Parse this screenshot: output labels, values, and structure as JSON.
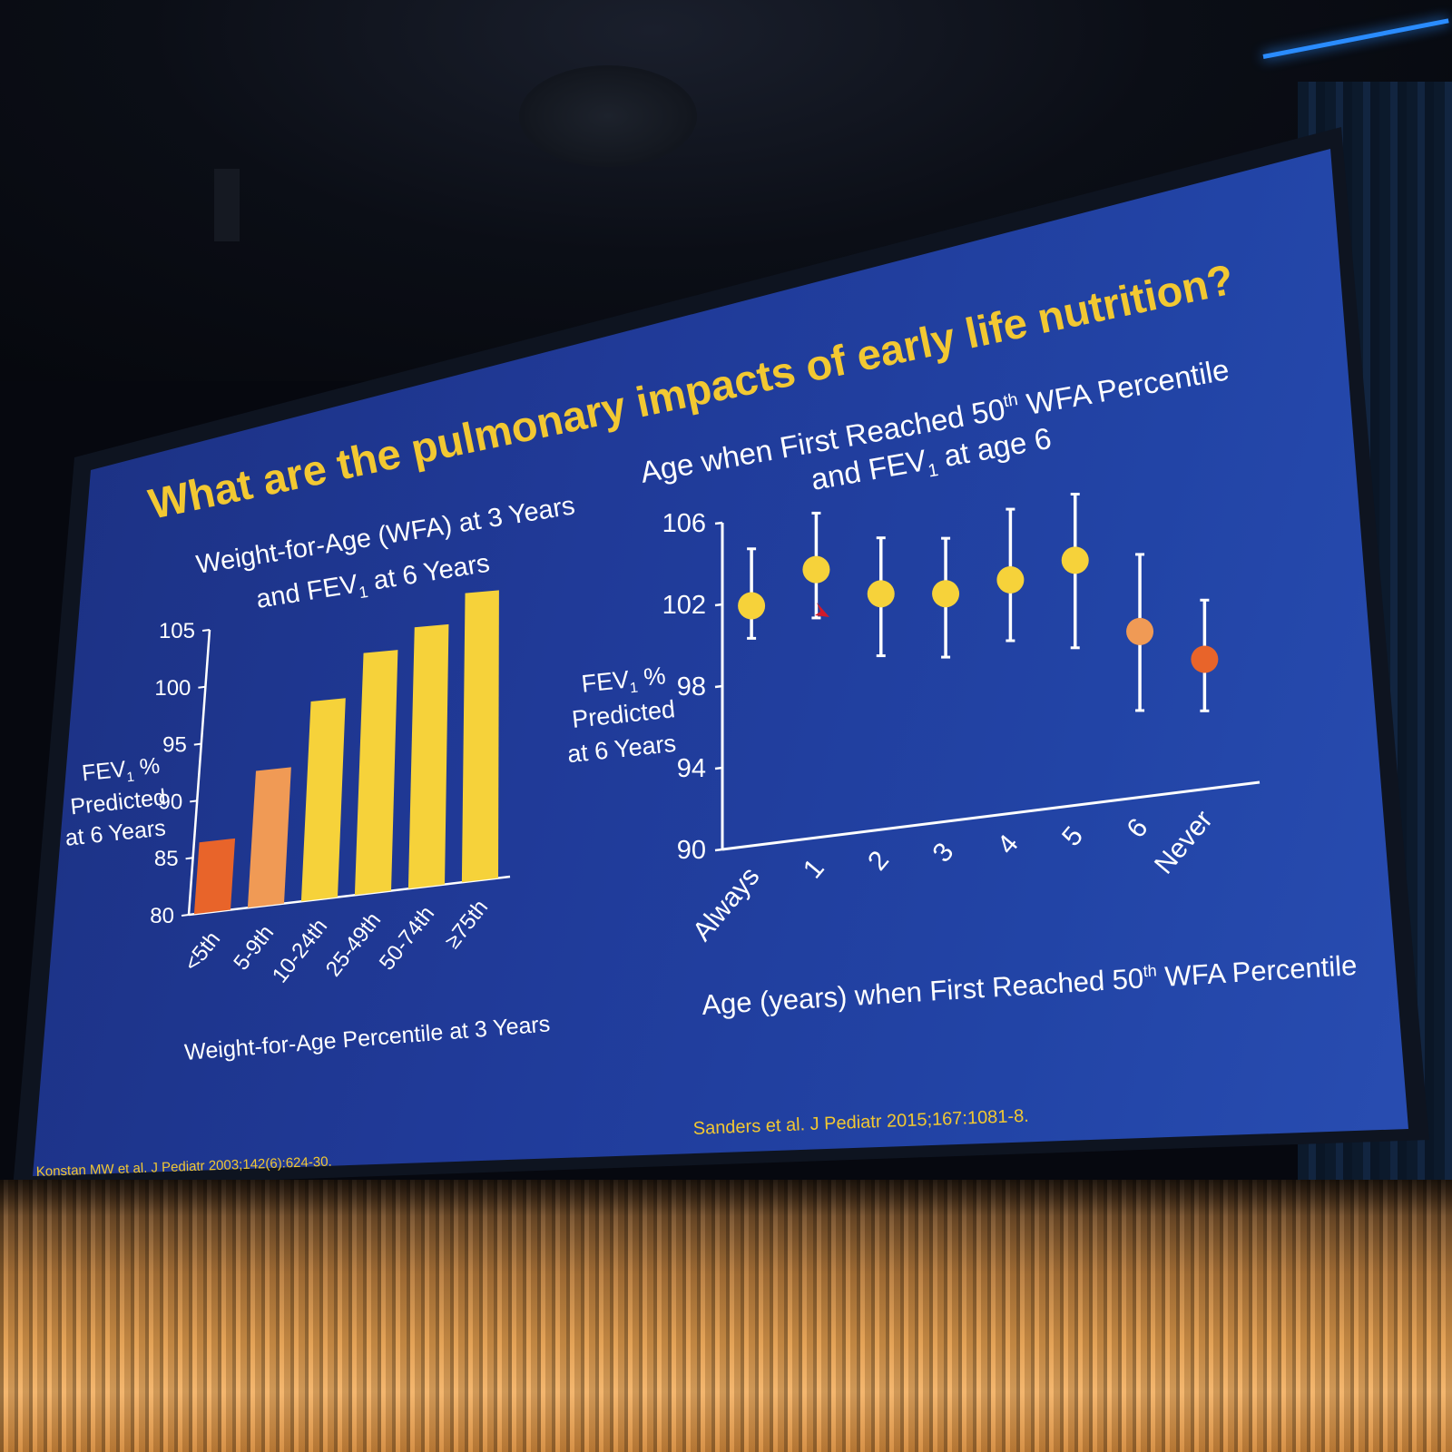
{
  "slide": {
    "title": "What are the pulmonary impacts of early life nutrition?",
    "colors": {
      "background": "#2142a3",
      "title": "#f2c832",
      "text": "#ffffff",
      "yellow": "#f6d23a",
      "orange_light": "#f09a55",
      "orange_dark": "#e8642a"
    }
  },
  "chart_data": [
    {
      "type": "bar",
      "title_line1": "Weight-for-Age (WFA) at 3 Years",
      "title_line2_pre": "and FEV",
      "title_line2_sub": "1",
      "title_line2_post": " at 6 Years",
      "ylabel_line1_pre": "FEV",
      "ylabel_line1_sub": "1",
      "ylabel_line1_post": " %",
      "ylabel_line2": "Predicted",
      "ylabel_line3": "at 6 Years",
      "xlabel": "Weight-for-Age Percentile at 3 Years",
      "ylim": [
        80,
        105
      ],
      "yticks": [
        "80",
        "85",
        "90",
        "95",
        "100",
        "105"
      ],
      "categories": [
        "<5th",
        "5-9th",
        "10-24th",
        "25-49th",
        "50-74th",
        "≥75th"
      ],
      "values": [
        86.3,
        92.1,
        97.8,
        101.7,
        103.6,
        106.3
      ],
      "bar_colors": [
        "#e8642a",
        "#f09a55",
        "#f6d23a",
        "#f6d23a",
        "#f6d23a",
        "#f6d23a"
      ],
      "citation": "Konstan MW et al. J Pediatr 2003;142(6):624-30."
    },
    {
      "type": "scatter",
      "title_line1_pre": "Age when First Reached 50",
      "title_line1_sup": "th",
      "title_line1_post": " WFA Percentile",
      "title_line2_pre": "and FEV",
      "title_line2_sub": "1",
      "title_line2_post": " at age 6",
      "ylabel_line1_pre": "FEV",
      "ylabel_line1_sub": "1",
      "ylabel_line1_post": " %",
      "ylabel_line2": "Predicted",
      "ylabel_line3": "at 6 Years",
      "xlabel_pre": "Age (years) when First Reached 50",
      "xlabel_sup": "th",
      "xlabel_post": " WFA Percentile",
      "ylim": [
        90,
        106
      ],
      "yticks": [
        "90",
        "94",
        "98",
        "102",
        "106"
      ],
      "categories": [
        "Always",
        "1",
        "2",
        "3",
        "4",
        "5",
        "6",
        "Never"
      ],
      "values": [
        101.8,
        103.3,
        101.8,
        101.5,
        101.9,
        102.6,
        98.6,
        96.8
      ],
      "err_low": [
        100.2,
        100.9,
        98.7,
        98.3,
        98.8,
        98.1,
        94.5,
        94.1
      ],
      "err_high": [
        104.6,
        106.1,
        104.6,
        104.3,
        105.5,
        106.0,
        102.6,
        99.9
      ],
      "point_colors": [
        "#f6d23a",
        "#f6d23a",
        "#f6d23a",
        "#f6d23a",
        "#f6d23a",
        "#f6d23a",
        "#f09a55",
        "#e8642a"
      ],
      "citation": "Sanders  et al.  J Pediatr 2015;167:1081-8."
    }
  ]
}
